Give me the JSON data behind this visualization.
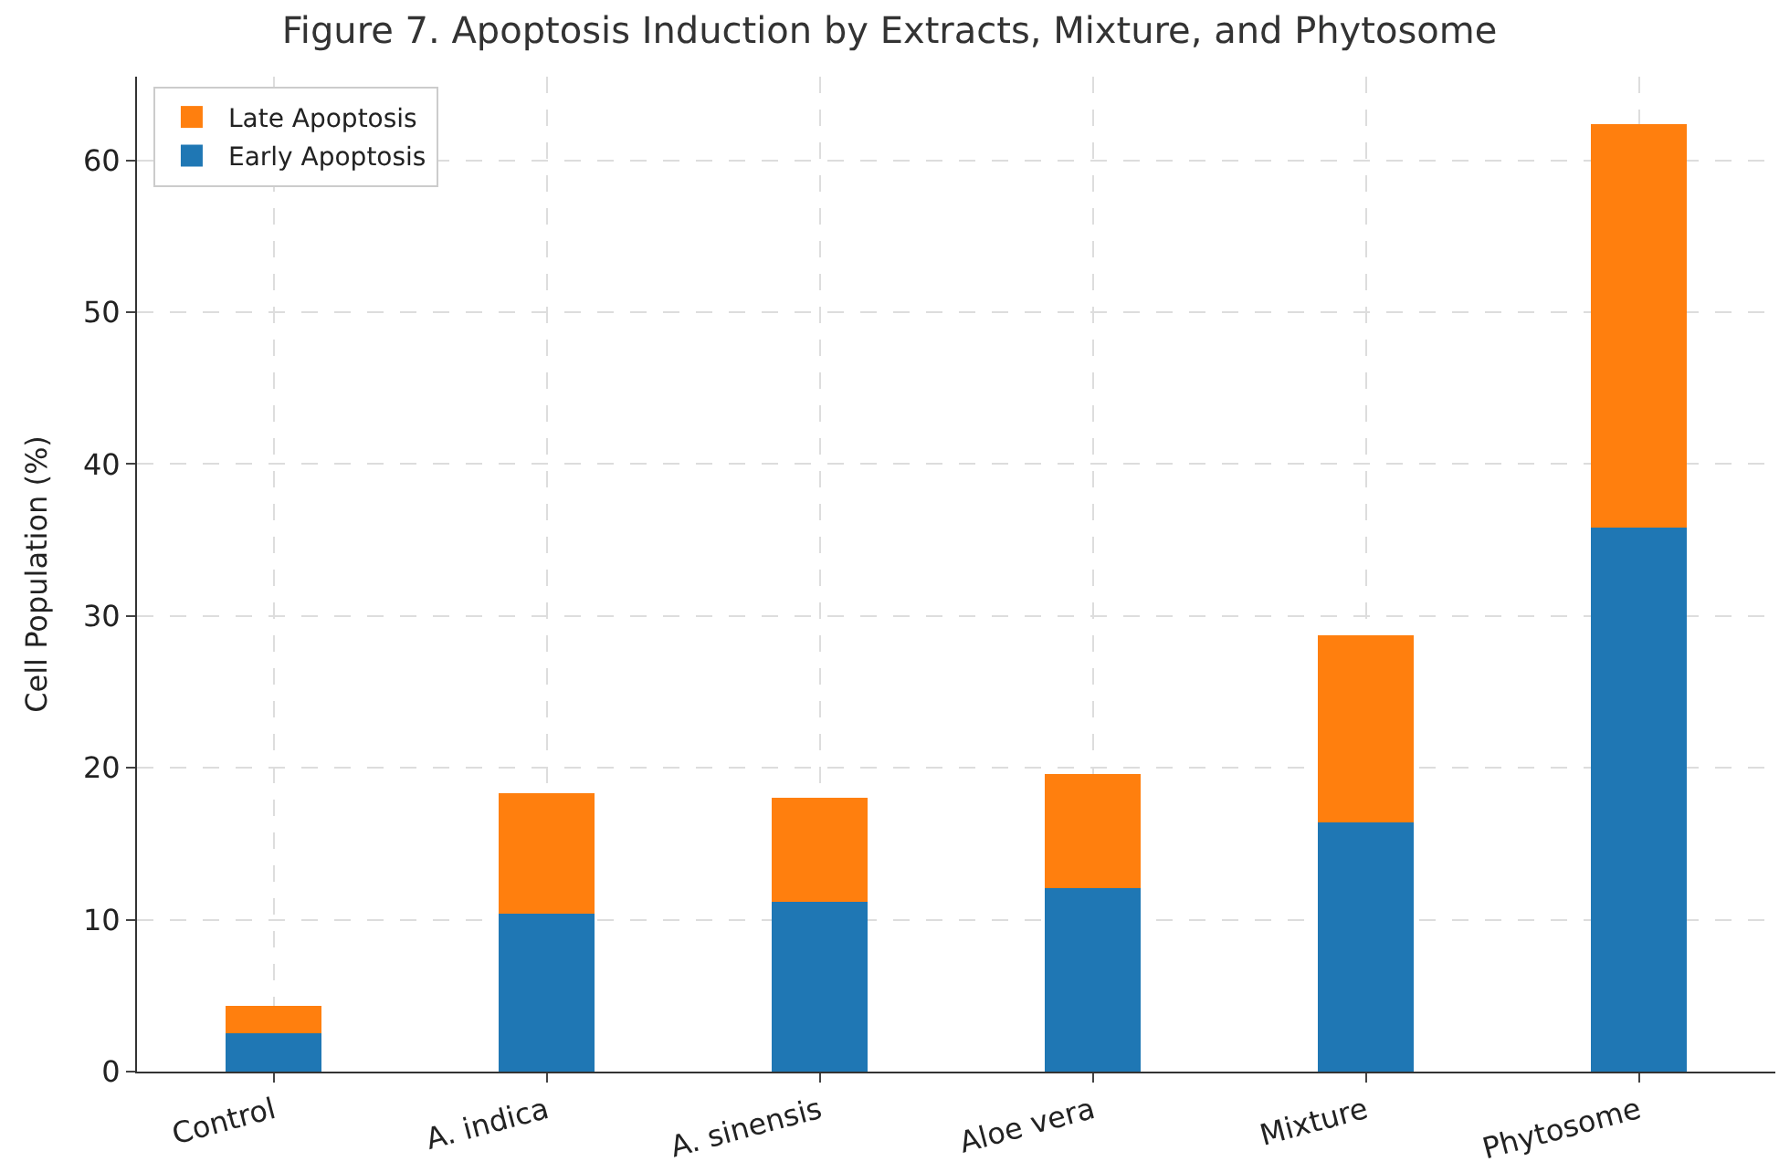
{
  "chart_data": {
    "type": "bar",
    "title": "Figure 7. Apoptosis Induction by Extracts, Mixture, and Phytosome",
    "ylabel": "Cell Population (%)",
    "categories": [
      "Control",
      "A. indica",
      "A. sinensis",
      "Aloe vera",
      "Mixture",
      "Phytosome"
    ],
    "stacked": true,
    "series": [
      {
        "name": "Early Apoptosis",
        "color": "#1f77b4",
        "values": [
          2.5,
          10.4,
          11.2,
          12.1,
          16.4,
          35.8
        ]
      },
      {
        "name": "Late Apoptosis",
        "color": "#ff7f0e",
        "values": [
          1.8,
          7.9,
          6.8,
          7.5,
          12.3,
          26.6
        ]
      }
    ],
    "ylim": [
      0,
      65.5
    ],
    "yticks": [
      0,
      10,
      20,
      30,
      40,
      50,
      60
    ],
    "grid": true,
    "legend": "top left"
  }
}
